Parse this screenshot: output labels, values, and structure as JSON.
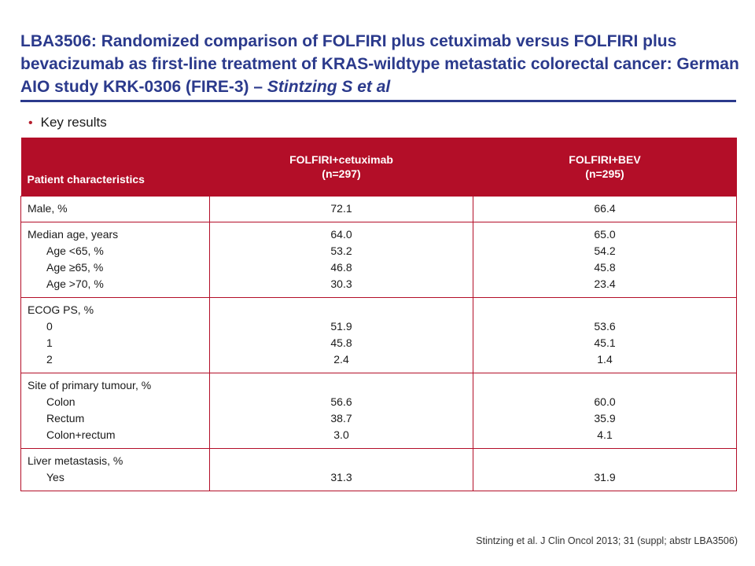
{
  "title": {
    "main": "LBA3506: Randomized comparison of FOLFIRI plus cetuximab versus FOLFIRI plus bevacizumab as first-line treatment of KRAS-wildtype metastatic colorectal cancer: German AIO study KRK-0306 (FIRE-3) – ",
    "authors": "Stintzing S et al"
  },
  "bullet": "Key results",
  "table": {
    "header": {
      "col0": "Patient characteristics",
      "col1_line1": "FOLFIRI+cetuximab",
      "col1_line2": "(n=297)",
      "col2_line1": "FOLFIRI+BEV",
      "col2_line2": "(n=295)"
    },
    "rows": [
      {
        "label": "Male, %",
        "a": "72.1",
        "b": "66.4"
      },
      {
        "label": "Median age, years",
        "a": "64.0",
        "b": "65.0",
        "sub": [
          {
            "label": "Age <65, %",
            "a": "53.2",
            "b": "54.2"
          },
          {
            "label": "Age ≥65, %",
            "a": "46.8",
            "b": "45.8"
          },
          {
            "label": "Age >70, %",
            "a": "30.3",
            "b": "23.4"
          }
        ]
      },
      {
        "label": "ECOG PS, %",
        "sub": [
          {
            "label": "0",
            "a": "51.9",
            "b": "53.6"
          },
          {
            "label": "1",
            "a": "45.8",
            "b": "45.1"
          },
          {
            "label": "2",
            "a": "2.4",
            "b": "1.4"
          }
        ]
      },
      {
        "label": "Site of primary tumour, %",
        "sub": [
          {
            "label": "Colon",
            "a": "56.6",
            "b": "60.0"
          },
          {
            "label": "Rectum",
            "a": "38.7",
            "b": "35.9"
          },
          {
            "label": "Colon+rectum",
            "a": "3.0",
            "b": "4.1"
          }
        ]
      },
      {
        "label": "Liver metastasis, %",
        "sub": [
          {
            "label": "Yes",
            "a": "31.3",
            "b": "31.9"
          }
        ]
      }
    ]
  },
  "citation": "Stintzing et al. J Clin Oncol 2013; 31 (suppl; abstr LBA3506)"
}
